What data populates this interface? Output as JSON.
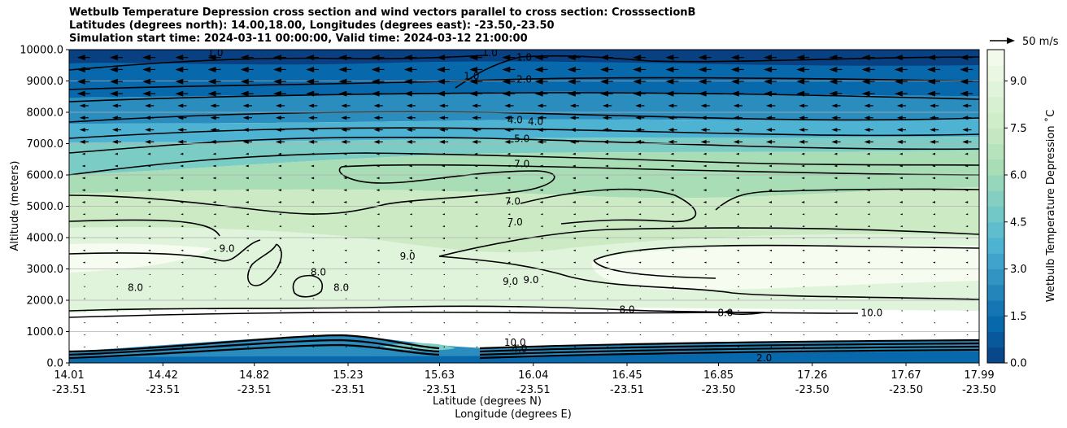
{
  "title_lines": [
    "Wetbulb Temperature Depression cross section and wind vectors parallel to cross section: CrosssectionB",
    "Latitudes (degrees north): 14.00,18.00, Longitudes (degrees east): -23.50,-23.50",
    "Simulation start time: 2024-03-11 00:00:00, Valid time: 2024-03-12 21:00:00"
  ],
  "chart_data": {
    "type": "heatmap",
    "subtype": "filled contour cross-section with contour lines and wind vectors",
    "ylabel": "Altitude (meters)",
    "xlabel_line1": "Latitude (degrees N)",
    "xlabel_line2": "Longitude (degrees E)",
    "ylim": [
      0,
      10000
    ],
    "y_ticks": [
      "0.0",
      "1000.0",
      "2000.0",
      "3000.0",
      "4000.0",
      "5000.0",
      "6000.0",
      "7000.0",
      "8000.0",
      "9000.0",
      "10000.0"
    ],
    "x_ticks": [
      {
        "lat": "14.01",
        "lon": "-23.51"
      },
      {
        "lat": "14.42",
        "lon": "-23.51"
      },
      {
        "lat": "14.82",
        "lon": "-23.51"
      },
      {
        "lat": "15.23",
        "lon": "-23.51"
      },
      {
        "lat": "15.63",
        "lon": "-23.51"
      },
      {
        "lat": "16.04",
        "lon": "-23.51"
      },
      {
        "lat": "16.45",
        "lon": "-23.51"
      },
      {
        "lat": "16.85",
        "lon": "-23.50"
      },
      {
        "lat": "17.26",
        "lon": "-23.50"
      },
      {
        "lat": "17.67",
        "lon": "-23.50"
      },
      {
        "lat": "17.99",
        "lon": "-23.50"
      }
    ],
    "colorbar": {
      "label": "Wetbulb Temperature Depression ˚C",
      "min": 0.0,
      "max": 10.0,
      "ticks": [
        "0.0",
        "1.5",
        "3.0",
        "4.5",
        "6.0",
        "7.5",
        "9.0"
      ],
      "colors": [
        "#084081",
        "#0868ac",
        "#2b8cbe",
        "#4eb3d3",
        "#7bccc4",
        "#a8ddb5",
        "#ccebc5",
        "#e0f3db",
        "#f7fcf0"
      ]
    },
    "wind_key": {
      "label": "50 m/s"
    },
    "grid": "horizontal",
    "contour_labels": [
      {
        "text": "1.0",
        "x": 14.65,
        "y": 9900
      },
      {
        "text": "1.0",
        "x": 15.85,
        "y": 9900
      },
      {
        "text": "1.0",
        "x": 16.0,
        "y": 9750
      },
      {
        "text": "1.0",
        "x": 15.77,
        "y": 9150
      },
      {
        "text": "2.0",
        "x": 16.0,
        "y": 9050
      },
      {
        "text": "4.0",
        "x": 15.96,
        "y": 7750
      },
      {
        "text": "4.0",
        "x": 16.05,
        "y": 7700
      },
      {
        "text": "5.0",
        "x": 15.99,
        "y": 7150
      },
      {
        "text": "7.0",
        "x": 15.99,
        "y": 6350
      },
      {
        "text": "7.0",
        "x": 15.95,
        "y": 5150
      },
      {
        "text": "7.0",
        "x": 15.96,
        "y": 4500
      },
      {
        "text": "9.0",
        "x": 14.7,
        "y": 3650
      },
      {
        "text": "9.0",
        "x": 15.49,
        "y": 3400
      },
      {
        "text": "8.0",
        "x": 15.1,
        "y": 2900
      },
      {
        "text": "8.0",
        "x": 14.3,
        "y": 2400
      },
      {
        "text": "8.0",
        "x": 15.2,
        "y": 2400
      },
      {
        "text": "9.0",
        "x": 15.94,
        "y": 2600
      },
      {
        "text": "9.0",
        "x": 16.03,
        "y": 2650
      },
      {
        "text": "8.0",
        "x": 16.45,
        "y": 1700
      },
      {
        "text": "8.0",
        "x": 16.88,
        "y": 1600
      },
      {
        "text": "10.0",
        "x": 17.52,
        "y": 1600
      },
      {
        "text": "10.0",
        "x": 15.96,
        "y": 650
      },
      {
        "text": "4.0",
        "x": 15.98,
        "y": 450
      },
      {
        "text": "2.0",
        "x": 17.05,
        "y": 150
      }
    ]
  }
}
